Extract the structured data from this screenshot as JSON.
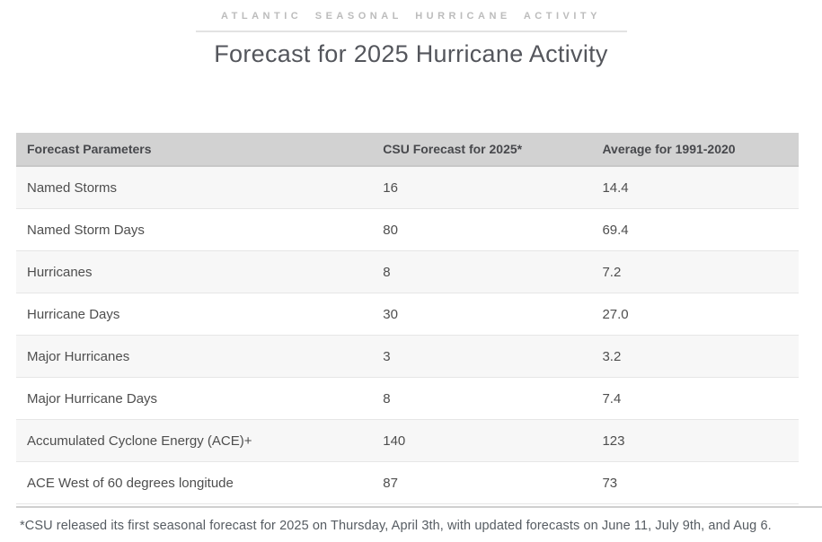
{
  "header": {
    "eyebrow": "ATLANTIC SEASONAL HURRICANE ACTIVITY",
    "title": "Forecast for 2025 Hurricane Activity"
  },
  "chart_data": {
    "type": "table",
    "title": "Forecast for 2025 Hurricane Activity",
    "subtitle": "ATLANTIC SEASONAL HURRICANE ACTIVITY",
    "columns": [
      "Forecast Parameters",
      "CSU Forecast for 2025*",
      "Average for 1991-2020"
    ],
    "rows": [
      [
        "Named Storms",
        "16",
        "14.4"
      ],
      [
        "Named Storm Days",
        "80",
        "69.4"
      ],
      [
        "Hurricanes",
        "8",
        "7.2"
      ],
      [
        "Hurricane Days",
        "30",
        "27.0"
      ],
      [
        "Major Hurricanes",
        "3",
        "3.2"
      ],
      [
        "Major Hurricane Days",
        "8",
        "7.4"
      ],
      [
        "Accumulated Cyclone Energy (ACE)+",
        "140",
        "123"
      ],
      [
        "ACE West of 60 degrees longitude",
        "87",
        "73"
      ]
    ]
  },
  "footnote": "*CSU released its first seasonal forecast for 2025 on Thursday, April 3th, with updated forecasts on June 11, July 9th, and Aug 6.",
  "colors": {
    "eyebrow_text": "#bcbcbc",
    "divider": "#e3e3e3",
    "title_text": "#54565c",
    "header_row_bg": "#d2d2d2",
    "header_text": "#47484c",
    "header_border": "#c7c7c7",
    "text": "#4e4e4e",
    "row_alt_bg": "#f7f7f7",
    "row_border": "#e6e6e6",
    "footnote_divider": "#cfcfcf",
    "footnote_text": "#565c62"
  }
}
